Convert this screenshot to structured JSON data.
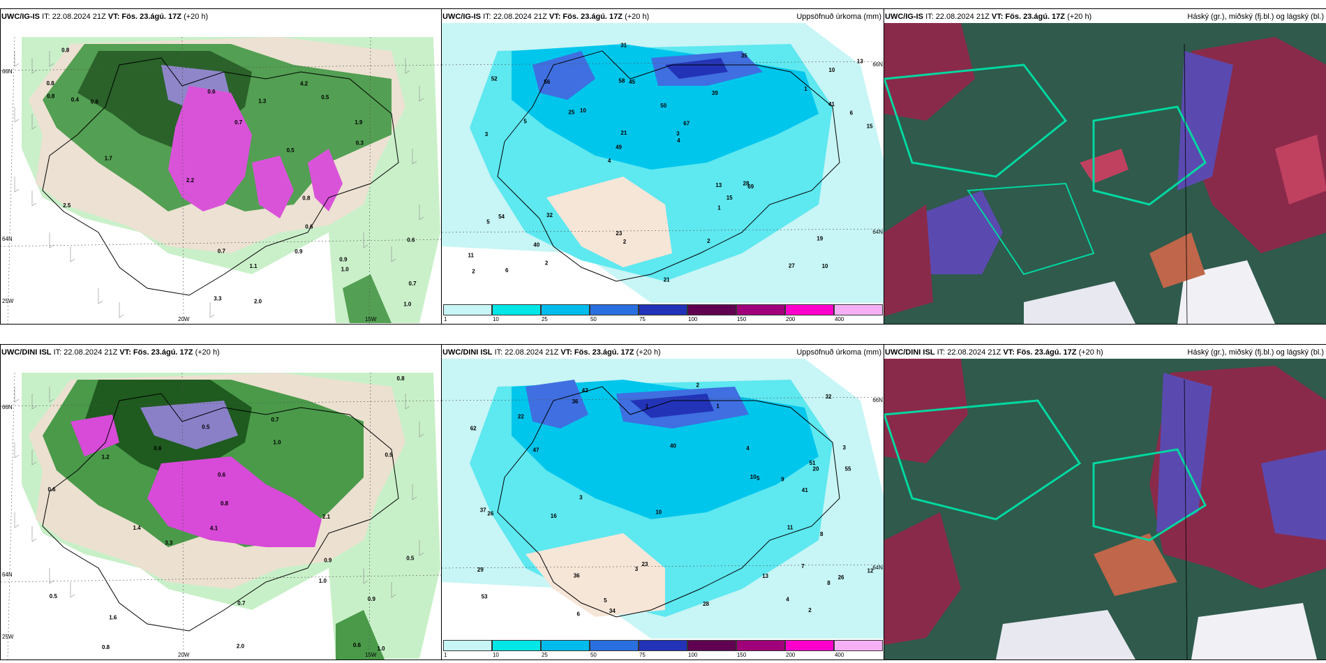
{
  "panels": [
    {
      "id": "p1",
      "title_model": "UWC/IG-IS",
      "title_it": "IT: 22.08.2024 21Z",
      "title_vt": "VT: Fös. 23.ágú. 17Z",
      "title_lead": "(+20 h)",
      "title_right": "",
      "type": "precip-wind",
      "lat_labels": [
        "66N",
        "64N"
      ],
      "lon_labels": [
        "25W",
        "20W",
        "15W"
      ]
    },
    {
      "id": "p2",
      "title_model": "UWC/IG-IS",
      "title_it": "IT: 22.08.2024 21Z",
      "title_vt": "VT: Fös. 23.ágú. 17Z",
      "title_lead": "(+20 h)",
      "title_right": "Uppsöfnuð úrkoma (mm)",
      "type": "accum",
      "lat_labels": [
        "66N",
        "64N"
      ],
      "values": [
        "10",
        "3",
        "10",
        "4",
        "39",
        "6",
        "58",
        "50",
        "54",
        "10",
        "11",
        "40",
        "45",
        "67",
        "69",
        "52",
        "31",
        "15",
        "13",
        "41",
        "49",
        "23",
        "21",
        "56",
        "35",
        "32",
        "27",
        "19",
        "28",
        "21",
        "25",
        "5",
        "1",
        "2",
        "6",
        "3",
        "2",
        "2",
        "4",
        "5",
        "1",
        "13",
        "15",
        "2"
      ]
    },
    {
      "id": "p3",
      "title_model": "UWC/IG-IS",
      "title_it": "IT: 22.08.2024 21Z",
      "title_vt": "VT: Fös. 23.ágú. 17Z",
      "title_lead": "(+20 h)",
      "title_right": "Háský (gr.), miðský (fj.bl.) og lágský (bl.)",
      "type": "clouds"
    },
    {
      "id": "p4",
      "title_model": "UWC/DINI ISL",
      "title_it": "IT: 22.08.2024 21Z",
      "title_vt": "VT: Fös. 23.ágú. 17Z",
      "title_lead": "(+20 h)",
      "title_right": "",
      "type": "precip-wind",
      "lat_labels": [
        "66N",
        "64N"
      ],
      "lon_labels": [
        "25W",
        "20W",
        "15W"
      ]
    },
    {
      "id": "p5",
      "title_model": "UWC/DINI ISL",
      "title_it": "IT: 22.08.2024 21Z",
      "title_vt": "VT: Fös. 23.ágú. 17Z",
      "title_lead": "(+20 h)",
      "title_right": "Uppsöfnuð úrkoma (mm)",
      "type": "accum",
      "lat_labels": [
        "66N",
        "64N"
      ],
      "values": [
        "7",
        "3",
        "26",
        "40",
        "53",
        "43",
        "51",
        "36",
        "32",
        "47",
        "55",
        "62",
        "41",
        "34",
        "29",
        "22",
        "8",
        "36",
        "23",
        "20",
        "37",
        "26",
        "28",
        "10",
        "5",
        "3",
        "2",
        "1",
        "4",
        "12",
        "16",
        "13",
        "6",
        "10",
        "8",
        "4",
        "5",
        "1",
        "2",
        "3",
        "11",
        "9"
      ]
    },
    {
      "id": "p6",
      "title_model": "UWC/DINI ISL",
      "title_it": "IT: 22.08.2024 21Z",
      "title_vt": "VT: Fös. 23.ágú. 17Z",
      "title_lead": "(+20 h)",
      "title_right": "Háský (gr.), miðský (fj.bl.) og lágský (bl.)",
      "type": "clouds"
    }
  ],
  "colorbar": {
    "ticks": [
      "1",
      "10",
      "25",
      "50",
      "75",
      "100",
      "150",
      "200",
      "400"
    ],
    "colors": [
      "#c8f5f5",
      "#00e6e6",
      "#00bcec",
      "#2a6fe0",
      "#2233b8",
      "#600050",
      "#a0007a",
      "#ff00cc",
      "#f5b0f5"
    ]
  },
  "precip_values_top": [
    "0.7",
    "1.0",
    "0.8",
    "1.9",
    "3.3",
    "0.6",
    "2.0",
    "4.2",
    "1.7",
    "2.5",
    "0.9",
    "1.3",
    "0.8",
    "0.4",
    "0.7",
    "0.5",
    "0.6",
    "0.9",
    "1.1",
    "0.6",
    "0.8",
    "0.7",
    "0.5",
    "2.2",
    "0.3",
    "0.6",
    "0.8",
    "1.0"
  ],
  "precip_values_bottom": [
    "0.6",
    "1.0",
    "0.9",
    "2.0",
    "2.1",
    "4.1",
    "3.3",
    "0.8",
    "0.6",
    "1.4",
    "0.5",
    "1.2",
    "0.7",
    "0.8",
    "0.9",
    "1.0",
    "0.6",
    "1.6",
    "0.5",
    "0.9",
    "0.7",
    "1.0",
    "0.6",
    "0.8",
    "0.5"
  ]
}
